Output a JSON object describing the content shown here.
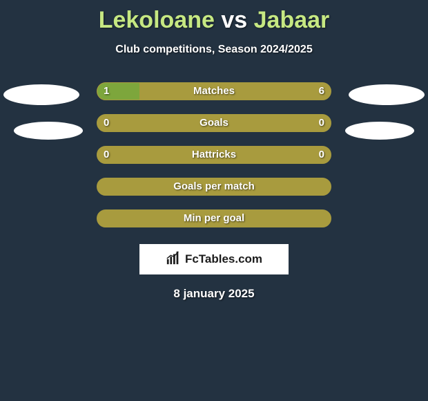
{
  "title": {
    "player1": "Lekoloane",
    "vs": "vs",
    "player2": "Jabaar"
  },
  "subtitle": "Club competitions, Season 2024/2025",
  "colors": {
    "background": "#233241",
    "bar_bg": "#a89b3e",
    "bar_fill": "#7da63c",
    "title_accent": "#c6e882",
    "text": "#ffffff",
    "brand_bg": "#ffffff",
    "brand_text": "#1b1b1b"
  },
  "stats": [
    {
      "label": "Matches",
      "left_value": "1",
      "right_value": "6",
      "left_pct": 18,
      "right_pct": 0
    },
    {
      "label": "Goals",
      "left_value": "0",
      "right_value": "0",
      "left_pct": 0,
      "right_pct": 0
    },
    {
      "label": "Hattricks",
      "left_value": "0",
      "right_value": "0",
      "left_pct": 0,
      "right_pct": 0
    },
    {
      "label": "Goals per match",
      "left_value": "",
      "right_value": "",
      "left_pct": 0,
      "right_pct": 0
    },
    {
      "label": "Min per goal",
      "left_value": "",
      "right_value": "",
      "left_pct": 0,
      "right_pct": 0
    }
  ],
  "brand": "FcTables.com",
  "date": "8 january 2025"
}
